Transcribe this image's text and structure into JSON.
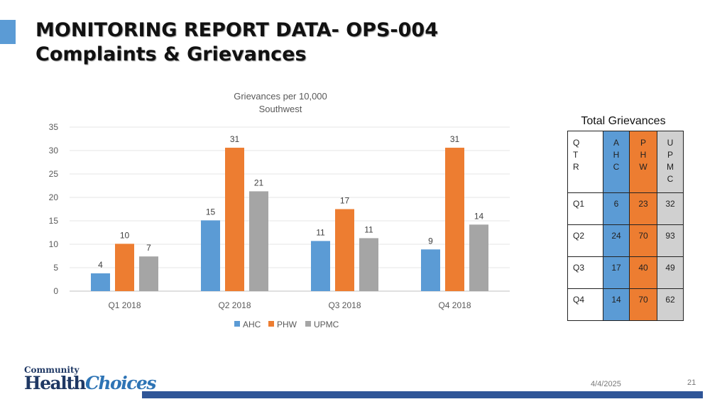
{
  "slide": {
    "title_line1": "MONITORING REPORT DATA- OPS-004",
    "title_line2": "Complaints & Grievances",
    "date": "4/4/2025",
    "page_number": "21",
    "logo_top": "Community",
    "logo_main_a": "Health",
    "logo_main_b": "Choices"
  },
  "chart_data": {
    "type": "bar",
    "title": "Grievances per 10,000",
    "subtitle": "Southwest",
    "categories": [
      "Q1 2018",
      "Q2 2018",
      "Q3 2018",
      "Q4 2018"
    ],
    "series": [
      {
        "name": "AHC",
        "values": [
          4,
          15,
          11,
          9
        ],
        "actual": [
          3.8,
          15.1,
          10.7,
          8.9
        ],
        "color": "#5b9bd5"
      },
      {
        "name": "PHW",
        "values": [
          10,
          31,
          17,
          31
        ],
        "actual": [
          10.1,
          30.6,
          17.5,
          30.6
        ],
        "color": "#ed7d31"
      },
      {
        "name": "UPMC",
        "values": [
          7,
          21,
          11,
          14
        ],
        "actual": [
          7.4,
          21.3,
          11.3,
          14.2
        ],
        "color": "#a5a5a5"
      }
    ],
    "ylim": [
      0,
      35
    ],
    "yticks": [
      0,
      5,
      10,
      15,
      20,
      25,
      30,
      35
    ],
    "grid": true,
    "legend": "bottom-center",
    "xlabel": "",
    "ylabel": ""
  },
  "table": {
    "title": "Total Grievances",
    "headers": [
      "Q\nT\nR",
      "A\nH\nC",
      "P\nH\nW",
      "U\nP\nM\nC"
    ],
    "rows": [
      [
        "Q1",
        "6",
        "23",
        "32"
      ],
      [
        "Q2",
        "24",
        "70",
        "93"
      ],
      [
        "Q3",
        "17",
        "40",
        "49"
      ],
      [
        "Q4",
        "14",
        "70",
        "62"
      ]
    ]
  }
}
